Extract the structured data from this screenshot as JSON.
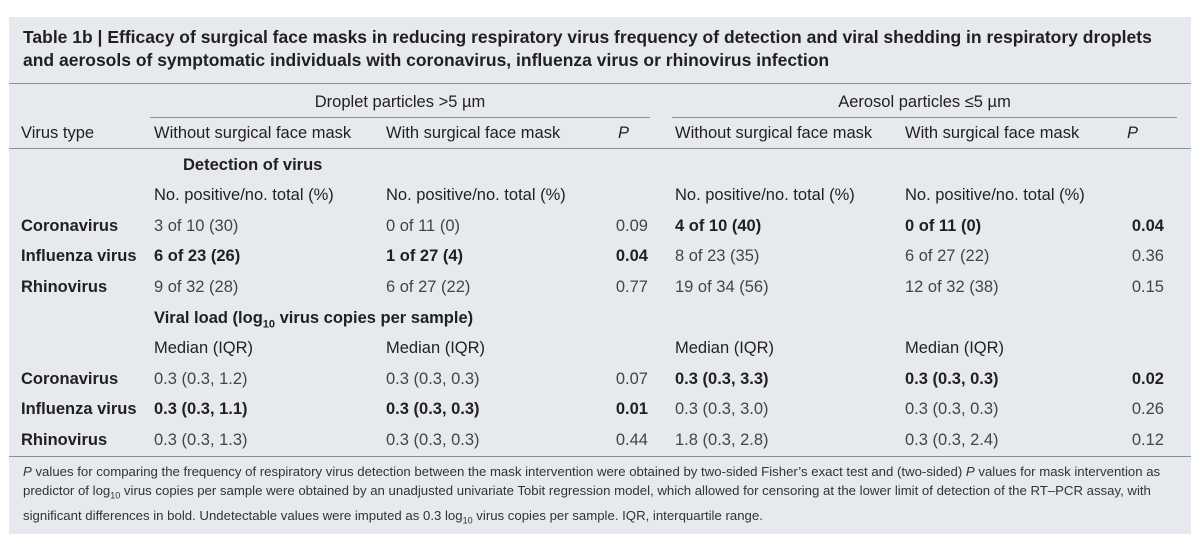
{
  "caption": {
    "label": "Table 1b |",
    "text": "Efficacy of surgical face masks in reducing respiratory virus frequency of detection and viral shedding in respiratory droplets and aerosols of symptomatic individuals with coronavirus, influenza virus or rhinovirus infection"
  },
  "spanners": {
    "droplet": "Droplet particles >5 µm",
    "aerosol": "Aerosol particles ≤5 µm"
  },
  "columns": {
    "virus_type": "Virus type",
    "without_mask": "Without surgical face mask",
    "with_mask": "With surgical face mask",
    "p": "P"
  },
  "detection": {
    "section_title": "Detection of virus",
    "unit_label": "No. positive/no. total (%)",
    "rows": [
      {
        "virus": "Coronavirus",
        "d_without": "3 of 10 (30)",
        "d_with": "0 of 11 (0)",
        "d_p": "0.09",
        "a_without": "4 of 10 (40)",
        "a_with": "0 of 11 (0)",
        "a_p": "0.04"
      },
      {
        "virus": "Influenza virus",
        "d_without": "6 of 23 (26)",
        "d_with": "1 of 27 (4)",
        "d_p": "0.04",
        "a_without": "8 of 23 (35)",
        "a_with": "6 of 27 (22)",
        "a_p": "0.36"
      },
      {
        "virus": "Rhinovirus",
        "d_without": "9 of 32 (28)",
        "d_with": "6 of 27 (22)",
        "d_p": "0.77",
        "a_without": "19 of 34 (56)",
        "a_with": "12 of 32 (38)",
        "a_p": "0.15"
      }
    ]
  },
  "viral_load": {
    "section_title_pre": "Viral load (log",
    "section_title_sub": "10",
    "section_title_post": " virus copies per sample)",
    "unit_label": "Median (IQR)",
    "rows": [
      {
        "virus": "Coronavirus",
        "d_without": "0.3 (0.3, 1.2)",
        "d_with": "0.3 (0.3, 0.3)",
        "d_p": "0.07",
        "a_without": "0.3 (0.3, 3.3)",
        "a_with": "0.3 (0.3, 0.3)",
        "a_p": "0.02"
      },
      {
        "virus": "Influenza virus",
        "d_without": "0.3 (0.3, 1.1)",
        "d_with": "0.3 (0.3, 0.3)",
        "d_p": "0.01",
        "a_without": "0.3 (0.3, 3.0)",
        "a_with": "0.3 (0.3, 0.3)",
        "a_p": "0.26"
      },
      {
        "virus": "Rhinovirus",
        "d_without": "0.3 (0.3, 1.3)",
        "d_with": "0.3 (0.3, 0.3)",
        "d_p": "0.44",
        "a_without": "1.8 (0.3, 2.8)",
        "a_with": "0.3 (0.3, 2.4)",
        "a_p": "0.12"
      }
    ]
  },
  "footnote": {
    "p1": "P",
    "t1": " values for comparing the frequency of respiratory virus detection between the mask intervention were obtained by two-sided Fisher’s exact test and (two-sided) ",
    "p2": "P",
    "t2": " values for mask intervention as predictor of log",
    "sub1": "10",
    "t3": " virus copies per sample were obtained by an unadjusted univariate Tobit regression model, which allowed for censoring at the lower limit of detection of the RT–PCR assay, with significant differences in bold. Undetectable values were imputed as 0.3 log",
    "sub2": "10",
    "t4": " virus copies per sample. IQR, interquartile range."
  }
}
